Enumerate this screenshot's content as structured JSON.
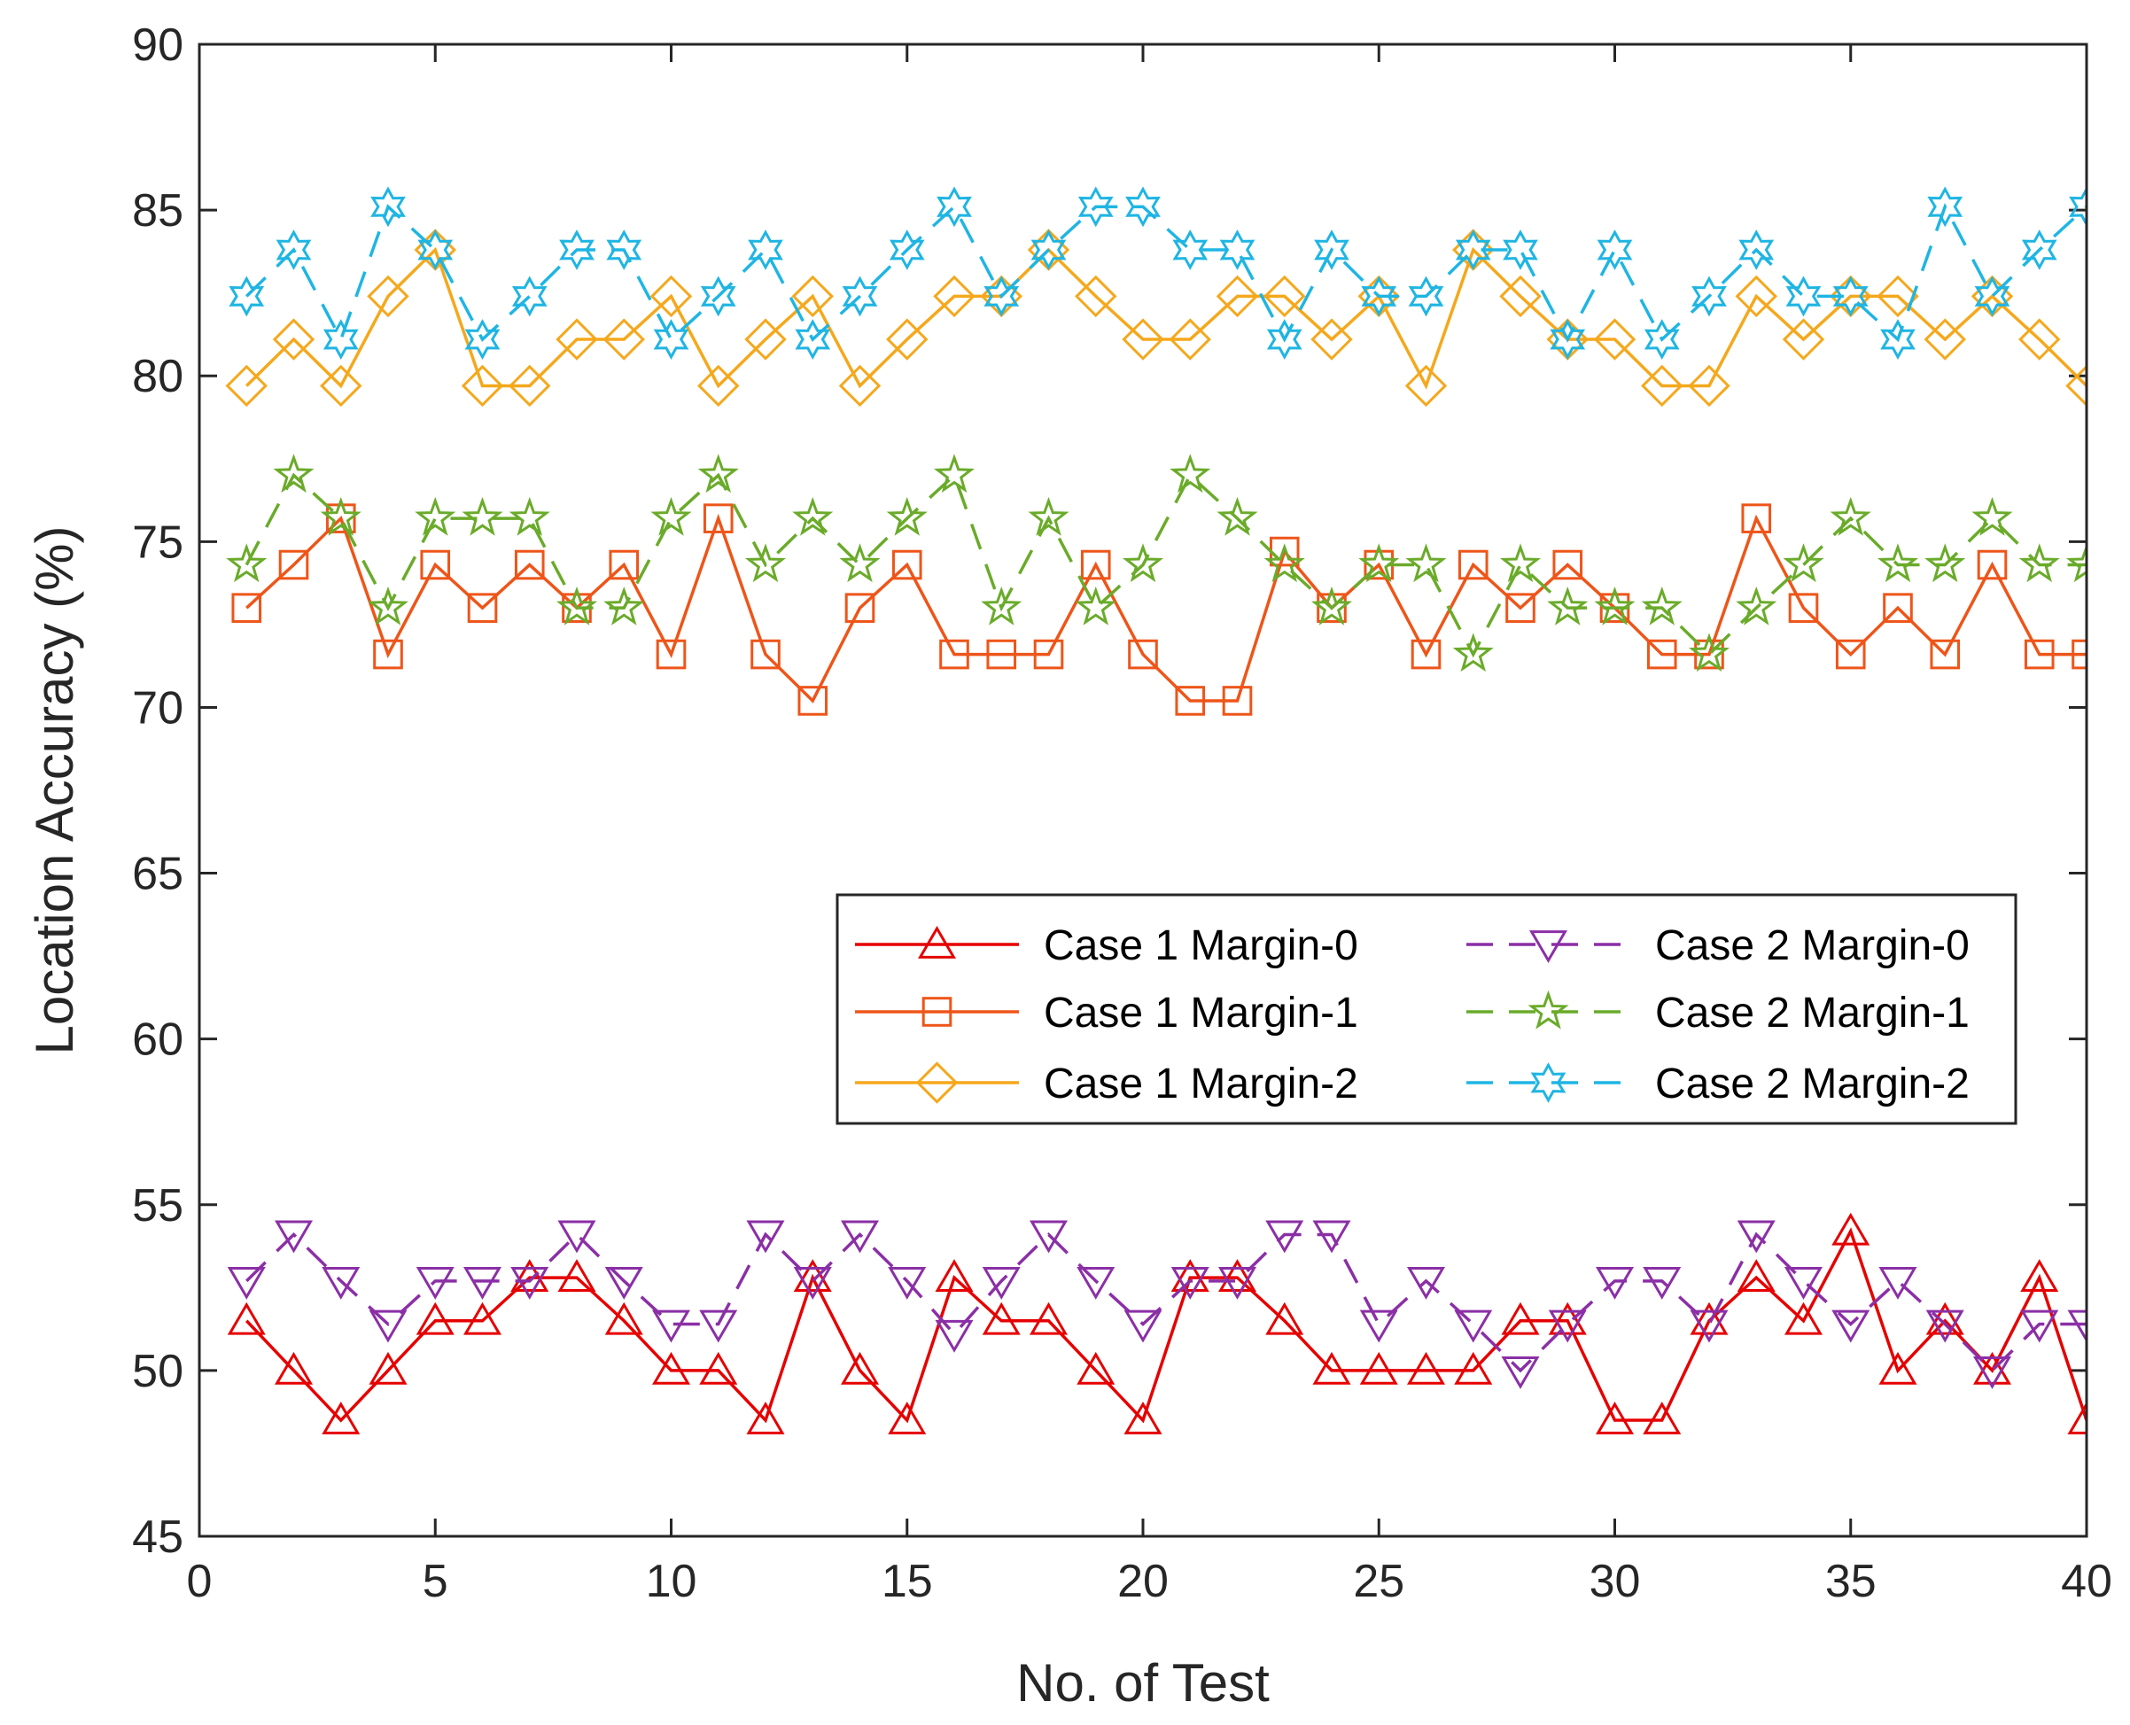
{
  "chart_data": {
    "type": "line",
    "title": "",
    "xlabel": "No. of Test",
    "ylabel": "Location Accuracy (%)",
    "xlim": [
      0,
      40
    ],
    "ylim": [
      45,
      90
    ],
    "xticks": [
      "0",
      "5",
      "10",
      "15",
      "20",
      "25",
      "30",
      "35",
      "40"
    ],
    "yticks": [
      "45",
      "50",
      "55",
      "60",
      "65",
      "70",
      "75",
      "80",
      "85",
      "90"
    ],
    "grid": false,
    "legend_position": "center-right",
    "x": [
      1,
      2,
      3,
      4,
      5,
      6,
      7,
      8,
      9,
      10,
      11,
      12,
      13,
      14,
      15,
      16,
      17,
      18,
      19,
      20,
      21,
      22,
      23,
      24,
      25,
      26,
      27,
      28,
      29,
      30,
      31,
      32,
      33,
      34,
      35,
      36,
      37,
      38,
      39,
      40
    ],
    "series": [
      {
        "name": "Case 1 Margin-0",
        "color": "#e60000",
        "marker": "triangle-up",
        "dash": "solid",
        "values": [
          51.5,
          50,
          48.5,
          50,
          51.5,
          51.5,
          52.8,
          52.8,
          51.5,
          50,
          50,
          48.5,
          52.8,
          50,
          48.5,
          52.8,
          51.5,
          51.5,
          50,
          48.5,
          52.8,
          52.8,
          51.5,
          50,
          50,
          50,
          50,
          51.5,
          51.5,
          48.5,
          48.5,
          51.5,
          52.8,
          51.5,
          54.2,
          50,
          51.5,
          50,
          52.8,
          48.5
        ]
      },
      {
        "name": "Case 1 Margin-1",
        "color": "#ee5519",
        "marker": "square",
        "dash": "solid",
        "values": [
          73,
          74.3,
          75.7,
          71.6,
          74.3,
          73,
          74.3,
          73,
          74.3,
          71.6,
          75.7,
          71.6,
          70.2,
          73,
          74.3,
          71.6,
          71.6,
          71.6,
          74.3,
          71.6,
          70.2,
          70.2,
          74.7,
          73,
          74.3,
          71.6,
          74.3,
          73,
          74.3,
          73,
          71.6,
          71.6,
          75.7,
          73,
          71.6,
          73,
          71.6,
          74.3,
          71.6,
          71.6
        ]
      },
      {
        "name": "Case 1 Margin-2",
        "color": "#f5a81c",
        "marker": "diamond",
        "dash": "solid",
        "values": [
          79.7,
          81.1,
          79.7,
          82.4,
          83.8,
          79.7,
          79.7,
          81.1,
          81.1,
          82.4,
          79.7,
          81.1,
          82.4,
          79.7,
          81.1,
          82.4,
          82.4,
          83.8,
          82.4,
          81.1,
          81.1,
          82.4,
          82.4,
          81.1,
          82.4,
          79.7,
          83.8,
          82.4,
          81.1,
          81.1,
          79.7,
          79.7,
          82.4,
          81.1,
          82.4,
          82.4,
          81.1,
          82.4,
          81.1,
          79.7
        ]
      },
      {
        "name": "Case 2 Margin-0",
        "color": "#8b2fa6",
        "marker": "triangle-down",
        "dash": "dashed",
        "values": [
          52.7,
          54.1,
          52.7,
          51.4,
          52.7,
          52.7,
          52.7,
          54.1,
          52.7,
          51.4,
          51.4,
          54.1,
          52.7,
          54.1,
          52.7,
          51.1,
          52.7,
          54.1,
          52.7,
          51.4,
          52.7,
          52.7,
          54.1,
          54.1,
          51.4,
          52.7,
          51.4,
          50,
          51.4,
          52.7,
          52.7,
          51.4,
          54.1,
          52.7,
          51.4,
          52.7,
          51.4,
          50,
          51.4,
          51.4
        ]
      },
      {
        "name": "Case 2 Margin-1",
        "color": "#6aab2a",
        "marker": "star",
        "dash": "dashed",
        "values": [
          74.3,
          77,
          75.7,
          73,
          75.7,
          75.7,
          75.7,
          73,
          73,
          75.7,
          77,
          74.3,
          75.7,
          74.3,
          75.7,
          77,
          73,
          75.7,
          73,
          74.3,
          77,
          75.7,
          74.3,
          73,
          74.3,
          74.3,
          71.6,
          74.3,
          73,
          73,
          73,
          71.6,
          73,
          74.3,
          75.7,
          74.3,
          74.3,
          75.7,
          74.3,
          74.3
        ]
      },
      {
        "name": "Case 2 Margin-2",
        "color": "#1fb5e3",
        "marker": "hexagram",
        "dash": "dashed",
        "values": [
          82.4,
          83.8,
          81.1,
          85.1,
          83.8,
          81.1,
          82.4,
          83.8,
          83.8,
          81.1,
          82.4,
          83.8,
          81.1,
          82.4,
          83.8,
          85.1,
          82.4,
          83.8,
          85.1,
          85.1,
          83.8,
          83.8,
          81.1,
          83.8,
          82.4,
          82.4,
          83.8,
          83.8,
          81.1,
          83.8,
          81.1,
          82.4,
          83.8,
          82.4,
          82.4,
          81.1,
          85.1,
          82.4,
          83.8,
          85.1
        ]
      }
    ]
  }
}
